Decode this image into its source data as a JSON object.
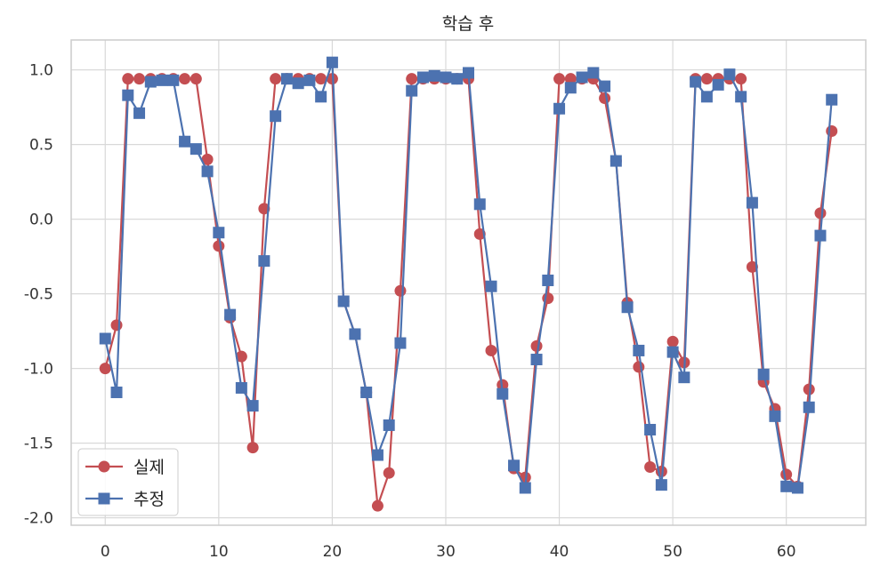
{
  "chart_data": {
    "type": "line",
    "title": "학습 후",
    "xlabel": "",
    "ylabel": "",
    "xlim": [
      -3,
      67
    ],
    "ylim": [
      -2.05,
      1.2
    ],
    "xticks": [
      0,
      10,
      20,
      30,
      40,
      50,
      60
    ],
    "yticks": [
      1.0,
      0.5,
      0.0,
      -0.5,
      -1.0,
      -1.5,
      -2.0
    ],
    "ytick_labels": [
      "1.0",
      "0.5",
      "0.0",
      "-0.5",
      "-1.0",
      "-1.5",
      "-2.0"
    ],
    "grid": true,
    "legend_position": "bottom-left",
    "series": [
      {
        "name": "실제",
        "color": "#c44e52",
        "marker": "circle",
        "values": [
          -1.0,
          -0.71,
          0.94,
          0.94,
          0.94,
          0.94,
          0.94,
          0.94,
          0.94,
          0.4,
          -0.18,
          -0.66,
          -0.92,
          -1.53,
          0.07,
          0.94,
          0.94,
          0.94,
          0.94,
          0.94,
          0.94,
          -0.55,
          -0.77,
          -1.16,
          -1.92,
          -1.7,
          -0.48,
          0.94,
          0.94,
          0.94,
          0.94,
          0.94,
          0.94,
          -0.1,
          -0.88,
          -1.11,
          -1.67,
          -1.73,
          -0.85,
          -0.53,
          0.94,
          0.94,
          0.94,
          0.94,
          0.81,
          0.39,
          -0.56,
          -0.99,
          -1.66,
          -1.69,
          -0.82,
          -0.96,
          0.94,
          0.94,
          0.94,
          0.94,
          0.94,
          -0.32,
          -1.09,
          -1.27,
          -1.71,
          -1.79,
          -1.14,
          0.04,
          0.59
        ]
      },
      {
        "name": "추정",
        "color": "#4c72b0",
        "marker": "square",
        "values": [
          -0.8,
          -1.16,
          0.83,
          0.71,
          0.92,
          0.93,
          0.93,
          0.52,
          0.47,
          0.32,
          -0.09,
          -0.64,
          -1.13,
          -1.25,
          -0.28,
          0.69,
          0.94,
          0.91,
          0.93,
          0.82,
          1.05,
          -0.55,
          -0.77,
          -1.16,
          -1.58,
          -1.38,
          -0.83,
          0.86,
          0.95,
          0.96,
          0.95,
          0.94,
          0.98,
          0.1,
          -0.45,
          -1.17,
          -1.65,
          -1.8,
          -0.94,
          -0.41,
          0.74,
          0.88,
          0.95,
          0.98,
          0.89,
          0.39,
          -0.59,
          -0.88,
          -1.41,
          -1.78,
          -0.89,
          -1.06,
          0.92,
          0.82,
          0.9,
          0.97,
          0.82,
          0.11,
          -1.04,
          -1.32,
          -1.79,
          -1.8,
          -1.26,
          -0.11,
          0.8
        ]
      }
    ]
  }
}
